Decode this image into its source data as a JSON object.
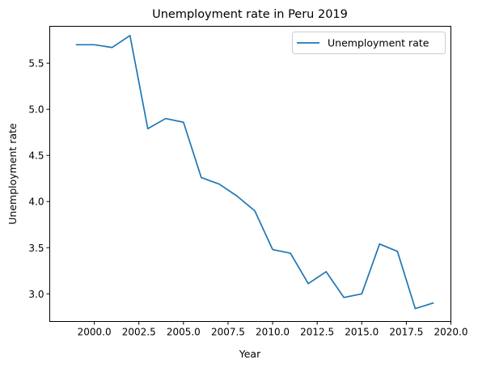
{
  "chart_data": {
    "type": "line",
    "title": "Unemployment rate in Peru 2019",
    "xlabel": "Year",
    "ylabel": "Unemployment rate",
    "xlim": [
      1997.5,
      2020.0
    ],
    "ylim": [
      2.7,
      5.9
    ],
    "xticks": [
      2000.0,
      2002.5,
      2005.0,
      2007.5,
      2010.0,
      2012.5,
      2015.0,
      2017.5,
      2020.0
    ],
    "xtick_labels": [
      "2000.0",
      "2002.5",
      "2005.0",
      "2007.5",
      "2010.0",
      "2012.5",
      "2015.0",
      "2017.5",
      "2020.0"
    ],
    "yticks": [
      3.0,
      3.5,
      4.0,
      4.5,
      5.0,
      5.5
    ],
    "ytick_labels": [
      "3.0",
      "3.5",
      "4.0",
      "4.5",
      "5.0",
      "5.5"
    ],
    "grid": false,
    "legend_position": "top-right",
    "series": [
      {
        "name": "Unemployment rate",
        "color": "#1f77b4",
        "x": [
          1999,
          2000,
          2001,
          2002,
          2003,
          2004,
          2005,
          2006,
          2007,
          2008,
          2009,
          2010,
          2011,
          2012,
          2013,
          2014,
          2015,
          2016,
          2017,
          2018,
          2019
        ],
        "y": [
          5.7,
          5.7,
          5.67,
          5.8,
          4.79,
          4.9,
          4.86,
          4.26,
          4.19,
          4.06,
          3.9,
          3.48,
          3.44,
          3.11,
          3.24,
          2.96,
          3.0,
          3.54,
          3.46,
          2.84,
          2.9
        ]
      }
    ]
  }
}
